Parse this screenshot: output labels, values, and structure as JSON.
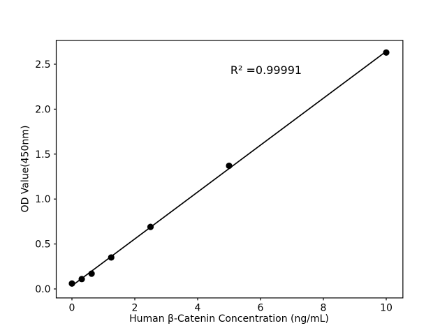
{
  "figure": {
    "background_color": "#ffffff",
    "text_color": "#000000"
  },
  "chart_data": {
    "type": "scatter",
    "title": "",
    "xlabel": "Human β-Catenin Concentration (ng/mL)",
    "ylabel": "OD Value(450nm)",
    "x": [
      0,
      0.3125,
      0.625,
      1.25,
      2.5,
      5,
      10
    ],
    "y": [
      0.06,
      0.11,
      0.17,
      0.35,
      0.69,
      1.37,
      2.63
    ],
    "fit_line": {
      "slope": 0.2608,
      "intercept": 0.0351,
      "x_start": 0,
      "x_end": 10
    },
    "r_squared_label": "R² =0.99991",
    "xticks": [
      0,
      2,
      4,
      6,
      8,
      10
    ],
    "xtick_labels": [
      "0",
      "2",
      "4",
      "6",
      "8",
      "10"
    ],
    "yticks": [
      0.0,
      0.5,
      1.0,
      1.5,
      2.0,
      2.5
    ],
    "ytick_labels": [
      "0.0",
      "0.5",
      "1.0",
      "1.5",
      "2.0",
      "2.5"
    ],
    "xlim": [
      -0.5,
      10.53
    ],
    "ylim": [
      -0.1,
      2.765
    ],
    "grid": false,
    "legend": null,
    "marker_color": "#000000",
    "line_color": "#000000",
    "axis_color": "#000000"
  }
}
